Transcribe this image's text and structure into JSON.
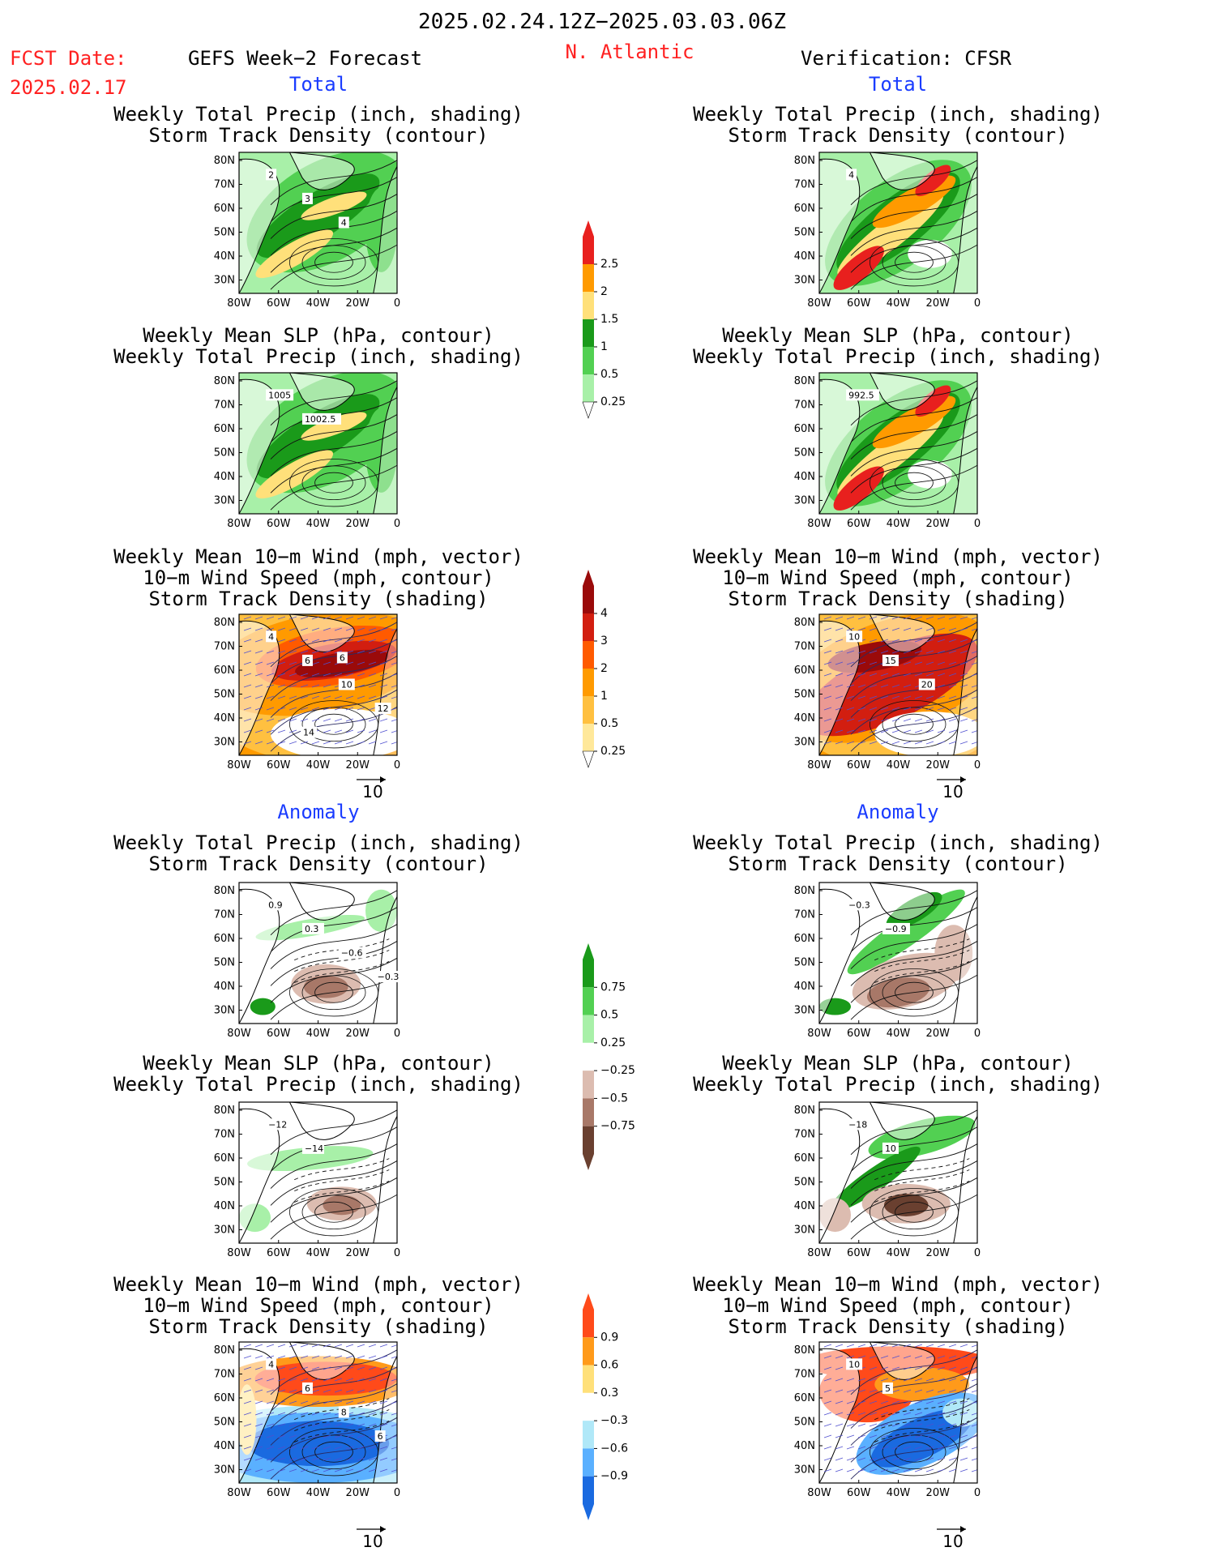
{
  "header": {
    "period": "2025.02.24.12Z−2025.03.03.06Z",
    "fcst_label": "FCST Date:",
    "fcst_date": "2025.02.17",
    "left_title": "GEFS Week−2 Forecast",
    "region": "N. Atlantic",
    "right_title": "Verification: CFSR"
  },
  "sections": {
    "total": "Total",
    "anomaly": "Anomaly"
  },
  "panel_titles": {
    "precip_storm": [
      "Weekly Total Precip (inch, shading)",
      "Storm Track Density (contour)"
    ],
    "slp_precip": [
      "Weekly Mean SLP (hPa, contour)",
      "Weekly Total Precip (inch, shading)"
    ],
    "wind_storm": [
      "Weekly Mean 10−m Wind (mph, vector)",
      "10−m Wind Speed (mph, contour)",
      "Storm Track Density (shading)"
    ]
  },
  "axes": {
    "lat_ticks": [
      "80N",
      "70N",
      "60N",
      "50N",
      "40N",
      "30N"
    ],
    "lon_ticks": [
      "80W",
      "60W",
      "40W",
      "20W",
      "0"
    ]
  },
  "vector_ref": "10",
  "colorbars": {
    "precip_total": {
      "labels": [
        "2.5",
        "2",
        "1.5",
        "1",
        "0.5",
        "0.25"
      ],
      "colors": [
        "#e8201e",
        "#ff9a00",
        "#ffe07a",
        "#1a9a1a",
        "#52d052",
        "#a8f0a8"
      ]
    },
    "storm_total": {
      "labels": [
        "4",
        "3",
        "2",
        "1",
        "0.5",
        "0.25"
      ],
      "colors": [
        "#9a0a0a",
        "#d21e10",
        "#ff5a00",
        "#ff9a00",
        "#ffc040",
        "#ffe89a"
      ]
    },
    "precip_anom": {
      "labels": [
        "0.75",
        "0.5",
        "0.25",
        "−0.25",
        "−0.5",
        "−0.75"
      ],
      "colors": [
        "#1a9a1a",
        "#52d052",
        "#a8f0a8",
        "#ffffff",
        "#dcbcb0",
        "#a87868",
        "#6a4030"
      ]
    },
    "storm_anom": {
      "labels": [
        "0.9",
        "0.6",
        "0.3",
        "−0.3",
        "−0.6",
        "−0.9"
      ],
      "colors": [
        "#ff4a1a",
        "#ff9a1a",
        "#ffe07a",
        "#ffffff",
        "#b0e8f8",
        "#5ab0ff",
        "#1a6ae0"
      ]
    }
  },
  "contour_labels": {
    "gefs_precip_storm": [
      "2",
      "3",
      "4"
    ],
    "gefs_slp_precip": [
      "1005",
      "1002.5"
    ],
    "gefs_wind_storm": [
      "4",
      "6",
      "10",
      "12",
      "14",
      "6"
    ],
    "cfsr_precip_storm": [
      "4"
    ],
    "cfsr_slp_precip": [
      "992.5"
    ],
    "cfsr_wind_storm": [
      "10",
      "15",
      "20"
    ],
    "gefs_precip_storm_anom": [
      "0.9",
      "0.3",
      "−0.6",
      "−0.3"
    ],
    "gefs_slp_precip_anom": [
      "−12",
      "−14"
    ],
    "gefs_wind_storm_anom": [
      "4",
      "6",
      "8",
      "6"
    ],
    "cfsr_precip_storm_anom": [
      "−0.3",
      "−0.9"
    ],
    "cfsr_slp_precip_anom": [
      "−18",
      "10"
    ],
    "cfsr_wind_storm_anom": [
      "10",
      "5"
    ]
  }
}
